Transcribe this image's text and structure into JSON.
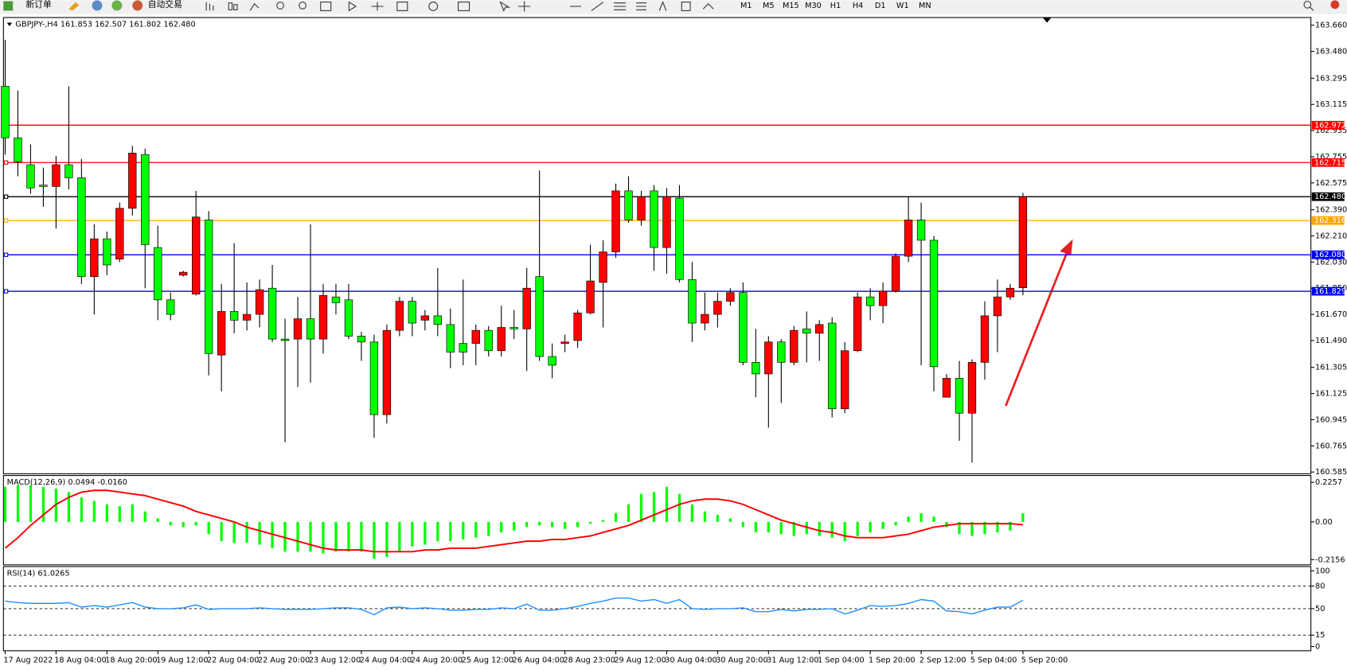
{
  "toolbar": {
    "buttons": [
      "新订单",
      "自动交易"
    ],
    "timeframes": [
      "M1",
      "M5",
      "M15",
      "M30",
      "H1",
      "H4",
      "D1",
      "W1",
      "MN"
    ]
  },
  "chart_data": [
    {
      "type": "candlestick",
      "title": "GBPJPY-,H4  161.853 162.507 161.802 162.480",
      "time_labels": [
        "17 Aug 2022",
        "18 Aug 04:00",
        "18 Aug 20:00",
        "19 Aug 12:00",
        "22 Aug 04:00",
        "22 Aug 20:00",
        "23 Aug 12:00",
        "24 Aug 04:00",
        "24 Aug 20:00",
        "25 Aug 12:00",
        "26 Aug 04:00",
        "28 Aug 23:00",
        "29 Aug 12:00",
        "30 Aug 04:00",
        "30 Aug 20:00",
        "31 Aug 12:00",
        "1 Sep 04:00",
        "1 Sep 20:00",
        "2 Sep 12:00",
        "5 Sep 04:00",
        "5 Sep 20:00"
      ],
      "open": [
        163.24,
        162.885,
        162.7,
        162.56,
        162.55,
        162.7,
        162.61,
        161.93,
        162.19,
        162.05,
        162.4,
        162.77,
        162.13,
        161.77,
        161.94,
        161.81,
        162.32,
        161.39,
        161.69,
        161.63,
        161.67,
        161.85,
        161.5,
        161.5,
        161.64,
        161.5,
        161.79,
        161.77,
        161.52,
        161.48,
        160.98,
        161.56,
        161.76,
        161.63,
        161.66,
        161.6,
        161.47,
        161.47,
        161.56,
        161.42,
        161.58,
        161.57,
        161.93,
        161.38,
        161.47,
        161.49,
        161.68,
        161.89,
        162.1,
        162.52,
        162.32,
        162.52,
        162.13,
        162.47,
        161.91,
        161.61,
        161.67,
        161.76,
        161.82,
        161.34,
        161.26,
        161.48,
        161.34,
        161.57,
        161.54,
        161.61,
        161.02,
        161.42,
        161.79,
        161.73,
        161.83,
        162.07,
        162.32,
        162.18,
        161.1,
        161.23,
        160.99,
        161.34,
        161.66,
        161.79,
        161.853
      ],
      "high": [
        163.56,
        163.21,
        162.84,
        162.68,
        162.76,
        163.24,
        162.74,
        162.29,
        162.24,
        162.44,
        162.83,
        162.81,
        162.28,
        161.82,
        161.97,
        162.52,
        162.38,
        161.88,
        162.16,
        161.89,
        161.91,
        162.01,
        161.64,
        161.79,
        162.29,
        161.88,
        161.88,
        161.88,
        161.55,
        161.53,
        161.6,
        161.79,
        161.79,
        161.7,
        161.99,
        161.71,
        161.91,
        161.6,
        161.59,
        161.73,
        161.7,
        161.99,
        162.66,
        161.47,
        161.53,
        161.7,
        162.15,
        162.18,
        162.57,
        162.62,
        162.52,
        162.56,
        162.54,
        162.56,
        162.03,
        161.82,
        161.82,
        161.85,
        161.89,
        161.57,
        161.52,
        161.5,
        161.59,
        161.69,
        161.63,
        161.65,
        161.48,
        161.82,
        161.85,
        161.89,
        162.09,
        162.48,
        162.44,
        162.21,
        161.26,
        161.35,
        161.36,
        161.76,
        161.91,
        161.88,
        162.507
      ],
      "low": [
        162.77,
        162.62,
        162.5,
        162.41,
        162.26,
        162.53,
        161.88,
        161.67,
        161.94,
        162.03,
        162.35,
        161.85,
        161.63,
        161.63,
        161.93,
        161.8,
        161.25,
        161.14,
        161.54,
        161.56,
        161.58,
        161.48,
        160.79,
        161.17,
        161.2,
        161.4,
        161.67,
        161.5,
        161.35,
        160.82,
        160.92,
        161.52,
        161.52,
        161.56,
        161.52,
        161.3,
        161.32,
        161.32,
        161.38,
        161.38,
        161.5,
        161.28,
        161.35,
        161.23,
        161.41,
        161.44,
        161.67,
        161.58,
        162.06,
        162.3,
        162.28,
        161.97,
        161.95,
        161.89,
        161.48,
        161.56,
        161.58,
        161.73,
        161.32,
        161.1,
        160.89,
        161.06,
        161.32,
        161.34,
        161.35,
        160.96,
        160.99,
        161.41,
        161.63,
        161.61,
        161.82,
        162.03,
        161.32,
        161.14,
        161.1,
        160.8,
        160.65,
        161.22,
        161.41,
        161.77,
        161.802
      ],
      "close": [
        162.885,
        162.72,
        162.54,
        162.55,
        162.7,
        162.61,
        161.93,
        162.19,
        162.01,
        162.4,
        162.78,
        162.15,
        161.77,
        161.67,
        161.96,
        162.34,
        161.4,
        161.69,
        161.63,
        161.67,
        161.84,
        161.5,
        161.49,
        161.64,
        161.5,
        161.8,
        161.75,
        161.52,
        161.48,
        160.98,
        161.56,
        161.76,
        161.61,
        161.66,
        161.6,
        161.41,
        161.41,
        161.56,
        161.42,
        161.58,
        161.57,
        161.85,
        161.38,
        161.32,
        161.48,
        161.68,
        161.9,
        162.1,
        162.52,
        162.32,
        162.48,
        162.13,
        162.48,
        161.91,
        161.61,
        161.67,
        161.76,
        161.82,
        161.34,
        161.26,
        161.48,
        161.34,
        161.56,
        161.54,
        161.6,
        161.02,
        161.42,
        161.79,
        161.73,
        161.83,
        162.07,
        162.32,
        162.18,
        161.31,
        161.23,
        160.99,
        161.34,
        161.66,
        161.79,
        161.85,
        162.48
      ],
      "up_color": "#ff0000",
      "down_color": "#00ff00",
      "ylim": [
        160.573,
        163.713
      ],
      "yticks": [
        {
          "value": 163.66,
          "label": "163.660"
        },
        {
          "value": 163.48,
          "label": "163.480"
        },
        163.295,
        163.115,
        162.935,
        162.755,
        162.575,
        {
          "value": 162.39,
          "label": "162.390"
        },
        {
          "value": 162.21,
          "label": "162.210"
        },
        {
          "value": 162.03,
          "label": "162.030"
        },
        {
          "value": 161.85,
          "label": "161.850"
        },
        {
          "value": 161.67,
          "label": "161.670"
        },
        {
          "value": 161.49,
          "label": "161.490"
        },
        161.305,
        161.125,
        160.945,
        160.765,
        160.585
      ],
      "levels": [
        {
          "value": 162.972,
          "color": "#ff0000"
        },
        {
          "value": 162.715,
          "color": "#ff0000"
        },
        {
          "value": 162.48,
          "label": "162.480",
          "color": "#000000"
        },
        {
          "value": 162.316,
          "color": "#ffa500"
        },
        {
          "value": 162.08,
          "label": "162.080",
          "color": "#0000ff"
        },
        {
          "value": 161.829,
          "color": "#0000ff"
        }
      ]
    },
    {
      "type": "macd",
      "title": "MACD(12,26,9) 0.0494 -0.0160",
      "histogram": [
        0.2,
        0.21,
        0.21,
        0.2,
        0.19,
        0.17,
        0.14,
        0.12,
        0.1,
        0.09,
        0.1,
        0.06,
        0.02,
        -0.02,
        -0.03,
        -0.02,
        -0.07,
        -0.11,
        -0.12,
        -0.12,
        -0.13,
        -0.15,
        -0.17,
        -0.17,
        -0.17,
        -0.18,
        -0.17,
        -0.17,
        -0.17,
        -0.21,
        -0.2,
        -0.17,
        -0.14,
        -0.13,
        -0.11,
        -0.11,
        -0.1,
        -0.09,
        -0.08,
        -0.06,
        -0.05,
        -0.03,
        -0.02,
        -0.03,
        -0.04,
        -0.03,
        -0.01,
        0.01,
        0.05,
        0.1,
        0.16,
        0.17,
        0.2,
        0.16,
        0.1,
        0.06,
        0.04,
        0.02,
        -0.03,
        -0.06,
        -0.06,
        -0.07,
        -0.08,
        -0.07,
        -0.08,
        -0.09,
        -0.11,
        -0.08,
        -0.06,
        -0.04,
        -0.02,
        0.03,
        0.05,
        0.03,
        -0.03,
        -0.07,
        -0.08,
        -0.07,
        -0.06,
        -0.05,
        0.0494
      ],
      "signal": [
        -0.15,
        -0.09,
        -0.02,
        0.04,
        0.1,
        0.14,
        0.17,
        0.18,
        0.18,
        0.17,
        0.16,
        0.15,
        0.13,
        0.11,
        0.09,
        0.06,
        0.04,
        0.02,
        0.0,
        -0.03,
        -0.05,
        -0.07,
        -0.09,
        -0.11,
        -0.13,
        -0.15,
        -0.16,
        -0.16,
        -0.16,
        -0.17,
        -0.17,
        -0.17,
        -0.17,
        -0.16,
        -0.16,
        -0.15,
        -0.15,
        -0.15,
        -0.14,
        -0.13,
        -0.12,
        -0.11,
        -0.11,
        -0.1,
        -0.1,
        -0.09,
        -0.08,
        -0.06,
        -0.04,
        -0.02,
        0.01,
        0.04,
        0.07,
        0.1,
        0.12,
        0.13,
        0.13,
        0.12,
        0.1,
        0.07,
        0.04,
        0.01,
        -0.01,
        -0.03,
        -0.05,
        -0.06,
        -0.08,
        -0.09,
        -0.09,
        -0.09,
        -0.08,
        -0.07,
        -0.05,
        -0.03,
        -0.02,
        -0.01,
        -0.01,
        -0.01,
        -0.01,
        -0.01,
        -0.016
      ],
      "histogram_color": "#00ff00",
      "signal_color": "#ff0000",
      "ylim": [
        -0.245,
        0.265
      ],
      "yticks": [
        0.2257,
        {
          "value": 0,
          "label": "0.00"
        },
        -0.2156
      ]
    },
    {
      "type": "line",
      "title": "RSI(14) 61.0265",
      "values": [
        60,
        58,
        57,
        57,
        57,
        58,
        52,
        54,
        52,
        55,
        58,
        52,
        50,
        50,
        51,
        55,
        49,
        50,
        50,
        50,
        51,
        50,
        49,
        49,
        49,
        50,
        51,
        51,
        49,
        42,
        51,
        52,
        50,
        51,
        50,
        48,
        48,
        49,
        49,
        51,
        50,
        56,
        48,
        48,
        50,
        53,
        57,
        60,
        64,
        64,
        60,
        62,
        57,
        62,
        50,
        49,
        50,
        50,
        51,
        46,
        46,
        49,
        47,
        49,
        49,
        50,
        43,
        48,
        54,
        53,
        54,
        57,
        62,
        60,
        47,
        46,
        43,
        48,
        52,
        52,
        61.0265
      ],
      "color": "#1e90ff",
      "ylim": [
        -5.7,
        105.7
      ],
      "yticks": [
        100,
        80,
        50,
        15,
        0
      ],
      "levels": [
        80,
        50,
        15
      ]
    }
  ]
}
